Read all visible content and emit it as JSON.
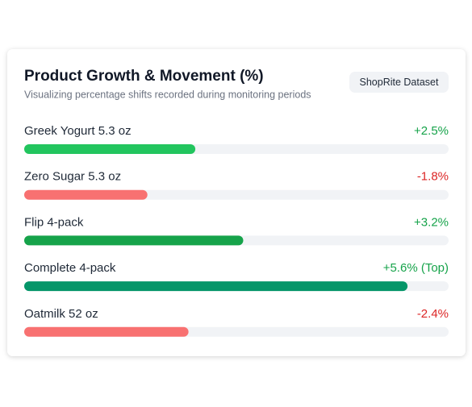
{
  "chart_data": {
    "type": "bar",
    "title": "Product Growth & Movement (%)",
    "subtitle": "Visualizing percentage shifts recorded during monitoring periods",
    "badge": "ShopRite Dataset",
    "categories": [
      "Greek Yogurt 5.3 oz",
      "Zero Sugar 5.3 oz",
      "Flip 4-pack",
      "Complete 4-pack",
      "Oatmilk 52 oz"
    ],
    "values": [
      2.5,
      -1.8,
      3.2,
      5.6,
      -2.4
    ],
    "value_labels": [
      "+2.5%",
      "-1.8%",
      "+3.2%",
      "+5.6% (Top)",
      "-2.4%"
    ],
    "colors": [
      "#22c55e",
      "#f87171",
      "#16a34a",
      "#059669",
      "#f87171"
    ],
    "label_colors": [
      "#16a34a",
      "#dc2626",
      "#16a34a",
      "#16a34a",
      "#dc2626"
    ],
    "track_color": "#f1f3f6",
    "xlim": [
      0,
      6.2
    ]
  }
}
